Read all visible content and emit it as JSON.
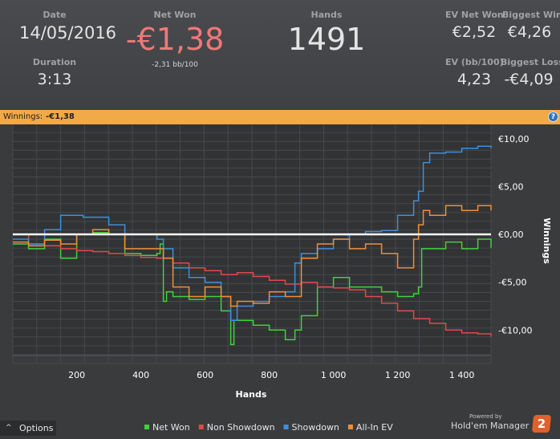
{
  "stats": {
    "date": {
      "label": "Date",
      "value": "14/05/2016"
    },
    "duration": {
      "label": "Duration",
      "value": "3:13"
    },
    "net_won": {
      "label": "Net Won",
      "value": "-€1,38",
      "sub": "-2,31 bb/100"
    },
    "hands": {
      "label": "Hands",
      "value": "1491"
    },
    "ev_net_won": {
      "label": "EV Net Won",
      "value": "€2,52"
    },
    "biggest_win": {
      "label": "Biggest Win",
      "value": "€4,26"
    },
    "ev_bb100": {
      "label": "EV (bb/100)",
      "value": "4,23"
    },
    "biggest_loss": {
      "label": "Biggest Loss",
      "value": "-€4,09"
    }
  },
  "banner": {
    "label": "Winnings:",
    "value": "-€1,38",
    "help": "?"
  },
  "colors": {
    "net_won": "#3fd13f",
    "non_showdown": "#e0494a",
    "showdown": "#3d8fdc",
    "all_in_ev": "#ef8f36",
    "negative": "#f07878",
    "banner": "#f2a948"
  },
  "options": {
    "label": "Options",
    "icon": "caret-up-icon"
  },
  "branding": {
    "powered_by": "Powered by",
    "product": "Hold'em Manager",
    "logo_text": "2"
  },
  "chart_data": {
    "type": "line",
    "xlabel": "Hands",
    "ylabel": "Winnings",
    "xlim": [
      1,
      1491
    ],
    "ylim": [
      -13.5,
      12.5
    ],
    "x_ticks": [
      200,
      400,
      600,
      800,
      1000,
      1200,
      1400
    ],
    "x_tick_labels": [
      "200",
      "400",
      "600",
      "800",
      "1 000",
      "1 200",
      "1 400"
    ],
    "y_ticks": [
      10,
      5,
      0,
      -5,
      -10
    ],
    "y_tick_labels": [
      "€10,00",
      "€5,00",
      "€0,00",
      "-€5,00",
      "-€10,00"
    ],
    "grid": true,
    "legend_position": "bottom",
    "series": [
      {
        "name": "Net Won",
        "color": "#3fd13f",
        "x": [
          1,
          50,
          100,
          150,
          200,
          250,
          300,
          350,
          400,
          450,
          460,
          470,
          480,
          500,
          550,
          600,
          650,
          680,
          690,
          700,
          750,
          800,
          850,
          880,
          900,
          950,
          1000,
          1050,
          1100,
          1150,
          1200,
          1250,
          1265,
          1275,
          1285,
          1300,
          1350,
          1400,
          1450,
          1491
        ],
        "y": [
          -1.0,
          -1.5,
          -0.5,
          -2.5,
          0.0,
          0.2,
          0.0,
          -2.0,
          -2.2,
          -2.0,
          -1.0,
          -7.0,
          -6.0,
          -6.5,
          -6.8,
          -6.5,
          -8.0,
          -11.5,
          -9.0,
          -9.0,
          -9.5,
          -10.0,
          -11.0,
          -10.0,
          -8.5,
          -5.5,
          -4.5,
          -5.5,
          -5.5,
          -6.0,
          -6.5,
          -6.2,
          -5.5,
          -1.5,
          -1.5,
          -1.5,
          -0.8,
          -1.5,
          -0.5,
          -1.4
        ]
      },
      {
        "name": "Non Showdown",
        "color": "#e0494a",
        "x": [
          1,
          50,
          100,
          150,
          200,
          250,
          300,
          350,
          400,
          450,
          500,
          550,
          600,
          650,
          700,
          750,
          800,
          850,
          900,
          950,
          1000,
          1050,
          1100,
          1150,
          1200,
          1250,
          1300,
          1350,
          1400,
          1450,
          1491
        ],
        "y": [
          0.0,
          -1.0,
          -1.2,
          -1.5,
          -1.7,
          -1.8,
          -2.0,
          -2.2,
          -2.4,
          -2.5,
          -3.0,
          -3.5,
          -3.8,
          -4.2,
          -4.0,
          -4.4,
          -4.8,
          -5.2,
          -5.0,
          -5.5,
          -5.6,
          -5.8,
          -6.5,
          -7.2,
          -8.0,
          -8.8,
          -9.3,
          -10.0,
          -10.3,
          -10.4,
          -10.7
        ]
      },
      {
        "name": "Showdown",
        "color": "#3d8fdc",
        "x": [
          1,
          50,
          100,
          150,
          200,
          220,
          300,
          350,
          400,
          450,
          470,
          500,
          550,
          600,
          650,
          680,
          700,
          750,
          800,
          850,
          880,
          900,
          950,
          1000,
          1050,
          1100,
          1150,
          1200,
          1250,
          1265,
          1280,
          1300,
          1350,
          1400,
          1450,
          1491
        ],
        "y": [
          -0.5,
          -1.0,
          0.5,
          2.0,
          2.0,
          1.8,
          1.0,
          0.0,
          0.0,
          -0.5,
          -1.5,
          -3.5,
          -4.5,
          -5.0,
          -6.5,
          -9.0,
          -7.5,
          -7.0,
          -6.5,
          -6.0,
          -3.0,
          -2.0,
          -1.5,
          -0.5,
          0.0,
          0.3,
          0.4,
          2.0,
          3.5,
          4.5,
          7.5,
          8.5,
          8.6,
          9.0,
          9.2,
          9.0
        ]
      },
      {
        "name": "All-In EV",
        "color": "#ef8f36",
        "x": [
          1,
          50,
          100,
          150,
          200,
          250,
          300,
          350,
          400,
          450,
          470,
          500,
          550,
          600,
          650,
          680,
          700,
          750,
          800,
          850,
          900,
          950,
          1000,
          1050,
          1100,
          1150,
          1200,
          1250,
          1265,
          1280,
          1300,
          1350,
          1400,
          1450,
          1491
        ],
        "y": [
          -0.8,
          -1.2,
          -0.6,
          -1.0,
          0.0,
          0.5,
          0.0,
          -1.5,
          -1.5,
          -1.5,
          -2.5,
          -5.5,
          -6.5,
          -5.5,
          -6.5,
          -7.5,
          -7.0,
          -7.2,
          -6.0,
          -6.5,
          -2.5,
          -1.0,
          -0.5,
          -1.5,
          -1.0,
          -2.0,
          -3.5,
          -0.5,
          1.0,
          2.5,
          2.0,
          3.0,
          2.5,
          3.0,
          2.5
        ]
      }
    ]
  }
}
